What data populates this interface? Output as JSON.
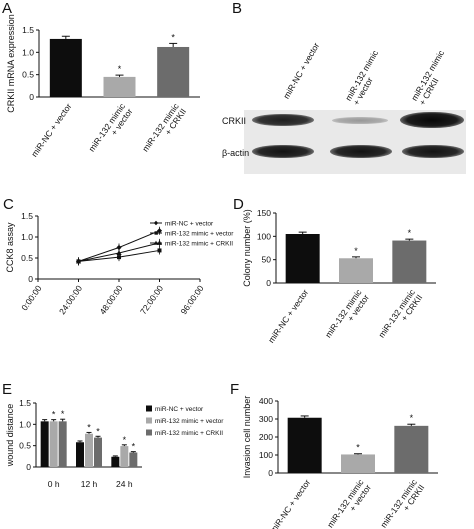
{
  "panels": {
    "A": "A",
    "B": "B",
    "C": "C",
    "D": "D",
    "E": "E",
    "F": "F"
  },
  "blot": {
    "lanes": [
      "miR-NC + vector",
      "miR-132 mimic\n+ vector",
      "miR-132 mimic\n+ CRKII"
    ],
    "rows": [
      "CRKII",
      "β-actin"
    ],
    "crkii_intensity": [
      0.85,
      0.35,
      0.95
    ],
    "actin_intensity": [
      0.9,
      0.9,
      0.9
    ]
  },
  "chart_data": [
    {
      "panel": "A",
      "type": "bar",
      "ylabel": "CRKII mRNA expression",
      "categories": [
        "miR-NC + vector",
        "miR-132 mimic\n+ vector",
        "miR-132 mimic\n+ CRKII"
      ],
      "values": [
        1.3,
        0.45,
        1.12
      ],
      "errors": [
        0.06,
        0.04,
        0.08
      ],
      "significance": [
        "",
        "*",
        "*"
      ],
      "colors": [
        "#0d0d0d",
        "#a9a9a9",
        "#6c6c6c"
      ],
      "ylim": [
        0,
        1.5
      ],
      "yticks": [
        0,
        0.5,
        1.0,
        1.5
      ],
      "ytick_labels": [
        "0",
        "0.5",
        "1.0",
        "1.5"
      ]
    },
    {
      "panel": "C",
      "type": "line",
      "ylabel": "CCK8 assay",
      "x": [
        "0:00:00",
        "24:00:00",
        "48:00:00",
        "72:00:00",
        "96:00:00"
      ],
      "ylim": [
        0,
        1.5
      ],
      "yticks": [
        0,
        0.5,
        1.0,
        1.5
      ],
      "ytick_labels": [
        "0",
        "0.5",
        "1.0",
        "1.5"
      ],
      "series": [
        {
          "name": "miR-NC + vector",
          "values": [
            null,
            0.42,
            0.75,
            1.15,
            null
          ],
          "marker": "diamond"
        },
        {
          "name": "miR-132 mimic + vector",
          "values": [
            null,
            0.42,
            0.52,
            0.68,
            null
          ],
          "marker": "square"
        },
        {
          "name": "miR-132 mimic + CRKII",
          "values": [
            null,
            0.42,
            0.62,
            0.86,
            null
          ],
          "marker": "triangle"
        }
      ]
    },
    {
      "panel": "D",
      "type": "bar",
      "ylabel": "Colony number (%)",
      "categories": [
        "miR-NC + vector",
        "miR-132 mimic\n+ vector",
        "miR-132 mimic\n+ CRKII"
      ],
      "values": [
        105,
        53,
        91
      ],
      "errors": [
        4,
        3,
        3
      ],
      "significance": [
        "",
        "*",
        "*"
      ],
      "colors": [
        "#0d0d0d",
        "#a9a9a9",
        "#6c6c6c"
      ],
      "ylim": [
        0,
        150
      ],
      "yticks": [
        0,
        50,
        100,
        150
      ],
      "ytick_labels": [
        "0",
        "50",
        "100",
        "150"
      ]
    },
    {
      "panel": "E",
      "type": "bar",
      "ylabel": "wound distance",
      "categories": [
        "0 h",
        "12 h",
        "24 h"
      ],
      "ylim": [
        0,
        1.5
      ],
      "yticks": [
        0,
        0.5,
        1.0,
        1.5
      ],
      "ytick_labels": [
        "0",
        "0.5",
        "1.0",
        "1.5"
      ],
      "series": [
        {
          "name": "miR-NC + vector",
          "values": [
            1.07,
            0.58,
            0.24
          ],
          "errors": [
            0.04,
            0.03,
            0.02
          ],
          "significance": [
            "",
            "",
            ""
          ],
          "color": "#0d0d0d"
        },
        {
          "name": "miR-132 mimic + vector",
          "values": [
            1.07,
            0.78,
            0.49
          ],
          "errors": [
            0.04,
            0.03,
            0.03
          ],
          "significance": [
            "*",
            "*",
            "*"
          ],
          "color": "#a9a9a9"
        },
        {
          "name": "miR-132 mimic + CRKII",
          "values": [
            1.07,
            0.69,
            0.34
          ],
          "errors": [
            0.05,
            0.03,
            0.02
          ],
          "significance": [
            "*",
            "*",
            "*"
          ],
          "color": "#6c6c6c"
        }
      ]
    },
    {
      "panel": "F",
      "type": "bar",
      "ylabel": "Invasion cell number",
      "categories": [
        "miR-NC + vector",
        "miR-132 mimic\n+ vector",
        "miR-132 mimic\n+ CRKII"
      ],
      "values": [
        307,
        103,
        262
      ],
      "errors": [
        10,
        4,
        9
      ],
      "significance": [
        "",
        "*",
        "*"
      ],
      "colors": [
        "#0d0d0d",
        "#a9a9a9",
        "#6c6c6c"
      ],
      "ylim": [
        0,
        400
      ],
      "yticks": [
        0,
        100,
        200,
        300,
        400
      ],
      "ytick_labels": [
        "0",
        "100",
        "200",
        "300",
        "400"
      ]
    }
  ]
}
